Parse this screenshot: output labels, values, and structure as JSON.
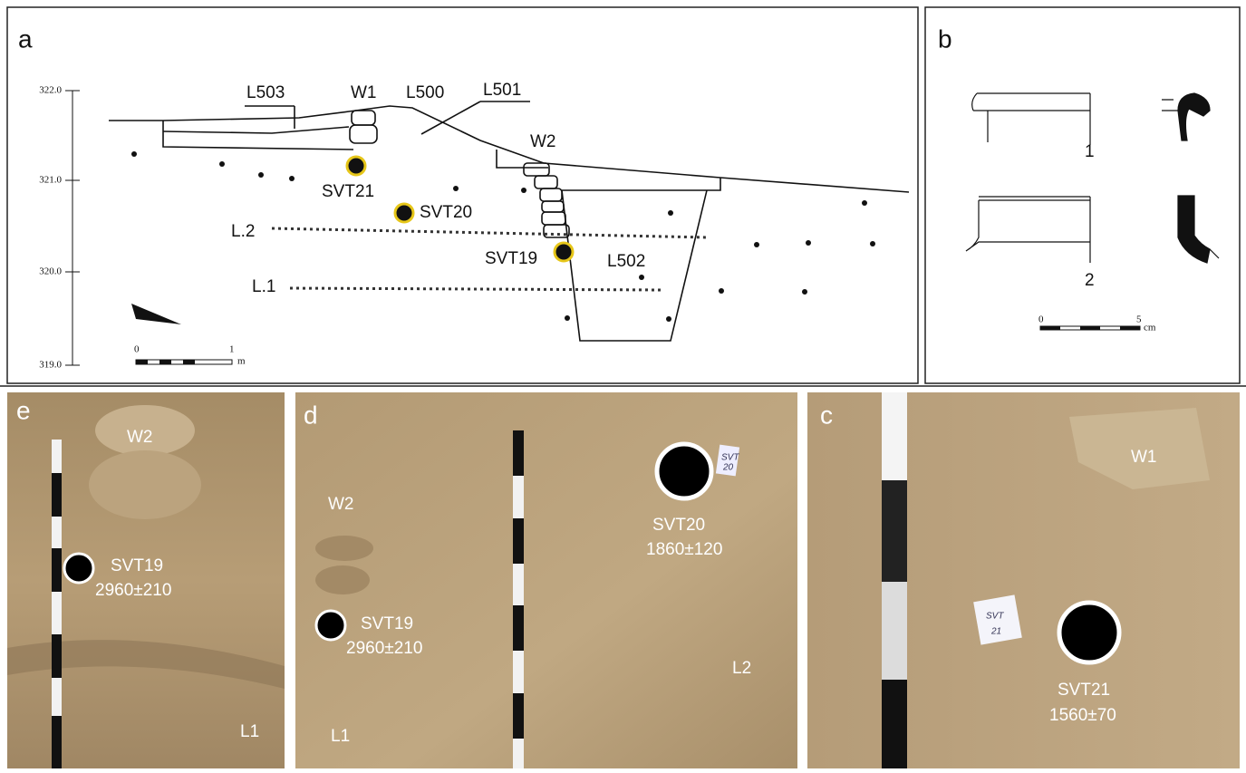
{
  "panels": {
    "a": {
      "label": "a",
      "depth_ticks": [
        "322.0",
        "321.0",
        "320.0",
        "319.0"
      ],
      "features": {
        "L503": "L503",
        "W1": "W1",
        "L500": "L500",
        "L501": "L501",
        "W2": "W2",
        "L502": "L502",
        "L2": "L.2",
        "L1": "L.1"
      },
      "samples": [
        "SVT21",
        "SVT20",
        "SVT19"
      ],
      "scale": {
        "start": "0",
        "end": "1",
        "unit": "m"
      }
    },
    "b": {
      "label": "b",
      "vessels": [
        "1",
        "2"
      ],
      "scale": {
        "start": "0",
        "end": "5",
        "unit": "cm"
      }
    },
    "e": {
      "label": "e",
      "wall": "W2",
      "sample": "SVT19",
      "date": "2960±210",
      "layer": "L1"
    },
    "d": {
      "label": "d",
      "wall": "W2",
      "samples": [
        {
          "name": "SVT20",
          "date": "1860±120"
        },
        {
          "name": "SVT19",
          "date": "2960±210"
        }
      ],
      "layers": [
        "L2",
        "L1"
      ],
      "tag": [
        "SVT",
        "20"
      ]
    },
    "c": {
      "label": "c",
      "wall": "W1",
      "sample": "SVT21",
      "date": "1560±70",
      "tag": [
        "SVT",
        "21"
      ]
    }
  }
}
